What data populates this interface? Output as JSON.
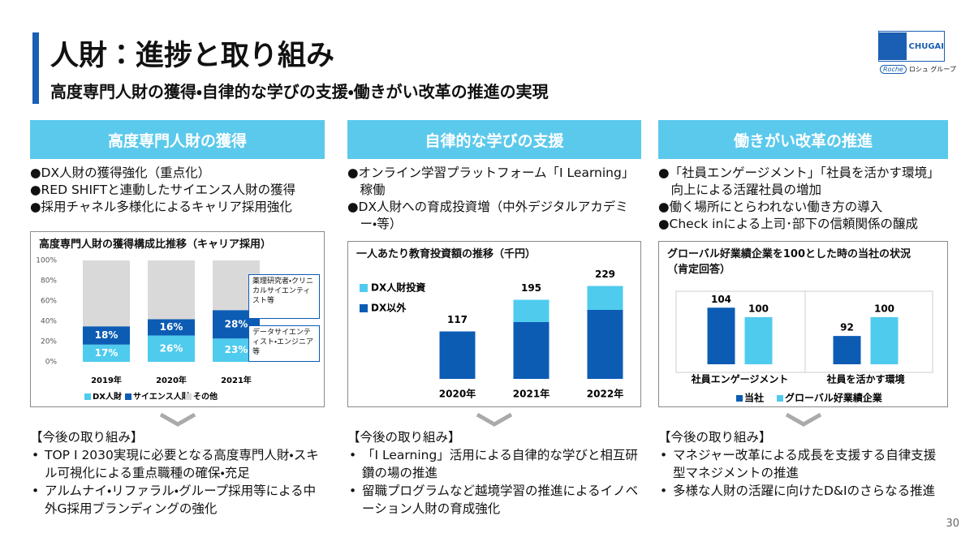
{
  "header": {
    "title": "人財：進捗と取り組み",
    "subtitle": "高度専門人財の獲得・自律的な学びの支援・働きがい改革の推進の実現",
    "logo": {
      "brand": "CHUGAI",
      "roche": "Roche",
      "group": "ロシュ グループ"
    },
    "page_number": "30"
  },
  "columns": [
    {
      "heading": "高度専門人財の獲得",
      "bullets": [
        "●DX人財の獲得強化（重点化）",
        "●RED SHIFTと連動したサイエンス人財の獲得",
        "●採用チャネル多様化によるキャリア採用強化"
      ],
      "future_heading": "【今後の取り組み】",
      "future": [
        "TOP I 2030実現に必要となる高度専門人財・スキル可視化による重点職種の確保・充足",
        "アルムナイ・リファラル・グループ採用等による中外G採用ブランディングの強化"
      ]
    },
    {
      "heading": "自律的な学びの支援",
      "bullets": [
        "●オンライン学習プラットフォーム「I Learning」稼働",
        "●DX人財への育成投資増（中外デジタルアカデミー・等）"
      ],
      "future_heading": "【今後の取り組み】",
      "future": [
        "「I Learning」活用による自律的な学びと相互研鑽の場の推進",
        "留職プログラムなど越境学習の推進によるイノベーション人財の育成強化"
      ]
    },
    {
      "heading": "働きがい改革の推進",
      "bullets": [
        "●「社員エンゲージメント」「社員を活かす環境」向上による活躍社員の増加",
        "●働く場所にとらわれない働き方の導入",
        "●Check inによる上司･部下の信頼関係の醸成"
      ],
      "future_heading": "【今後の取り組み】",
      "future": [
        "マネジャー改革による成長を支援する自律支援型マネジメントの推進",
        "多様な人財の活躍に向けたD&Iのさらなる推進"
      ]
    }
  ],
  "chart_data": [
    {
      "type": "bar",
      "stacked": true,
      "title": "高度専門人財の獲得構成比推移（キャリア採用）",
      "categories": [
        "2019年",
        "2020年",
        "2021年"
      ],
      "series": [
        {
          "name": "DX人財",
          "color": "#4fcbee",
          "values": [
            17,
            26,
            23
          ],
          "value_labels": [
            "17%",
            "26%",
            "23%"
          ]
        },
        {
          "name": "サイエンス人財",
          "color": "#0c5cb4",
          "values": [
            18,
            16,
            28
          ],
          "value_labels": [
            "18%",
            "16%",
            "28%"
          ]
        },
        {
          "name": "その他",
          "color": "#d9d9d9",
          "values": [
            65,
            58,
            49
          ]
        }
      ],
      "ylim": [
        0,
        100
      ],
      "yticks": [
        {
          "value": 0,
          "label": "0%"
        },
        {
          "value": 20,
          "label": "20%"
        },
        {
          "value": 40,
          "label": "40%"
        },
        {
          "value": 60,
          "label": "60%"
        },
        {
          "value": 80,
          "label": "80%"
        },
        {
          "value": 100,
          "label": "100%"
        }
      ],
      "annotations": [
        "薬理研究者・クリニカルサイエンティスト等",
        "データサイエンティスト・エンジニア等"
      ]
    },
    {
      "type": "bar",
      "stacked": true,
      "title": "一人あたり教育投資額の推移（千円）",
      "categories": [
        "2020年",
        "2021年",
        "2022年"
      ],
      "series": [
        {
          "name": "DX以外",
          "color": "#0c5cb4",
          "values": [
            117,
            140,
            170
          ]
        },
        {
          "name": "DX人財投資",
          "color": "#4fcbee",
          "values": [
            null,
            55,
            59
          ]
        }
      ],
      "totals": [
        117,
        195,
        229
      ],
      "ylim": [
        0,
        260
      ]
    },
    {
      "type": "bar",
      "stacked": false,
      "title": "グローバル好業績企業を100とした時の当社の状況（肯定回答）",
      "categories": [
        "社員エンゲージメント",
        "社員を活かす環境"
      ],
      "series": [
        {
          "name": "当社",
          "color": "#0c5cb4",
          "values": [
            104,
            92
          ]
        },
        {
          "name": "グローバル好業績企業",
          "color": "#4fcbee",
          "values": [
            100,
            100
          ]
        }
      ],
      "ylim": [
        80,
        112
      ]
    }
  ]
}
